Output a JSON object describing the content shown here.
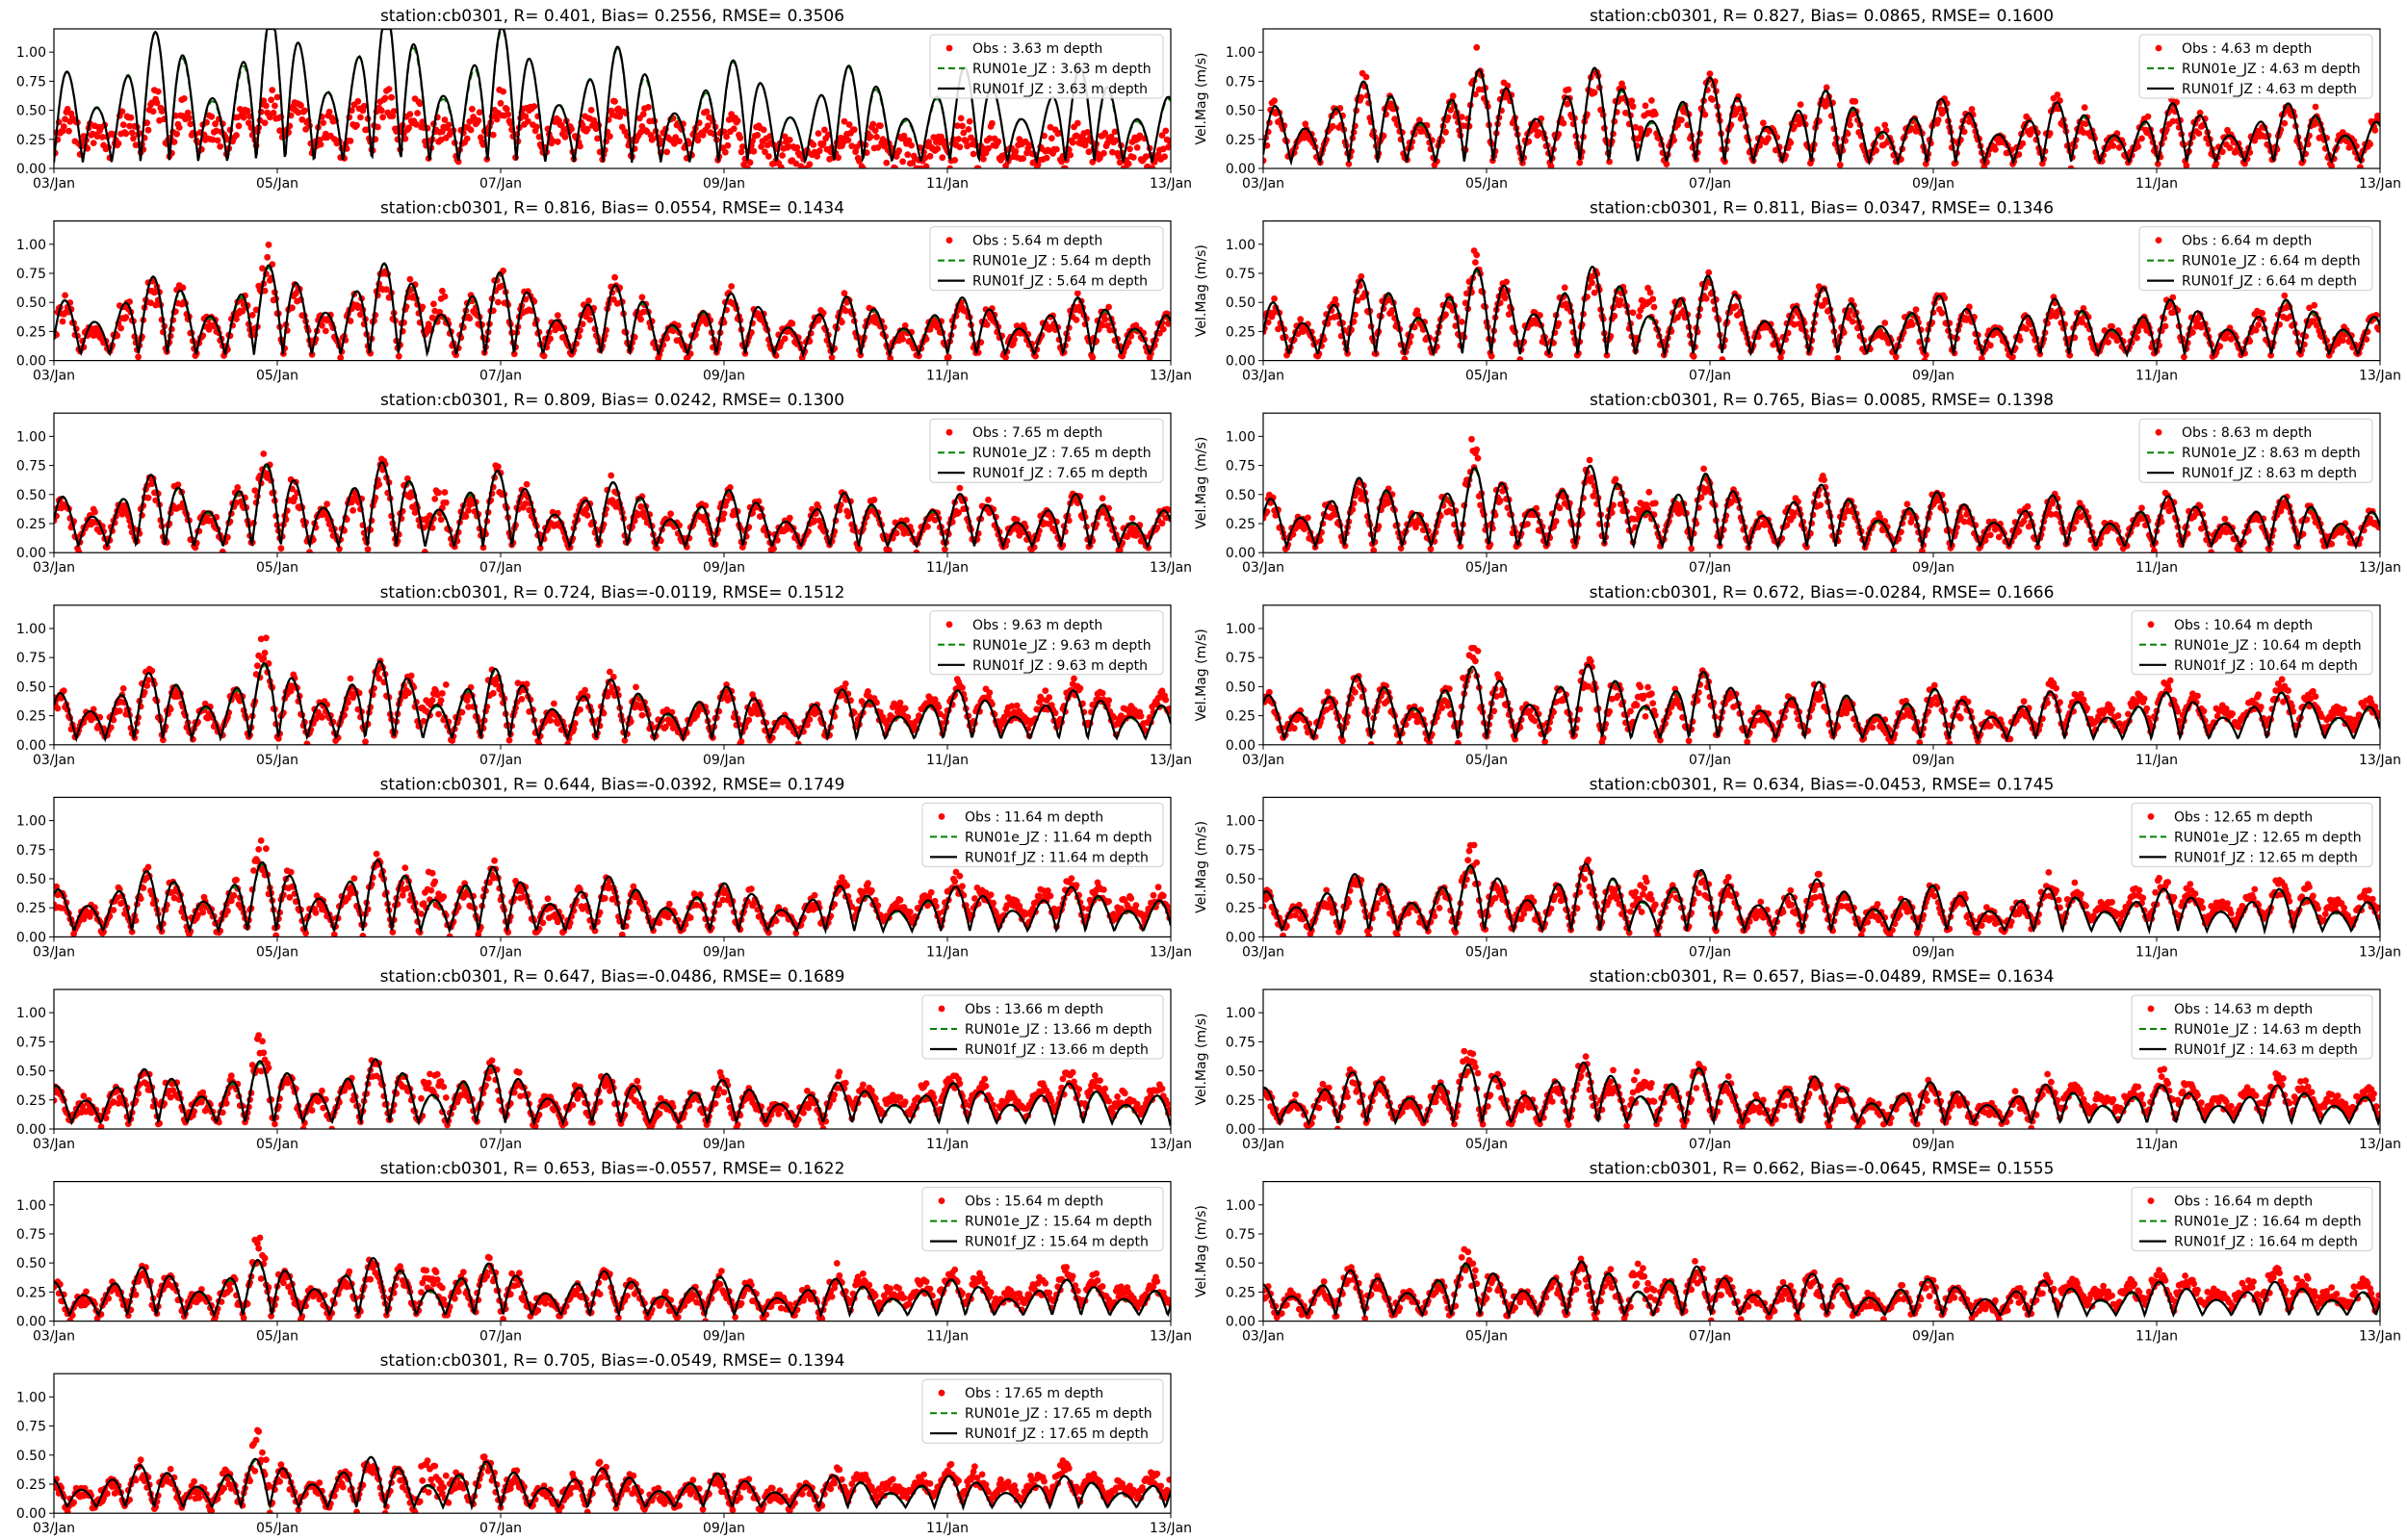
{
  "colors": {
    "obs": "#ff0000",
    "run01e": "#008000",
    "run01f": "#000000"
  },
  "chart_data": [
    {
      "type": "line",
      "title": "station:cb0301, R= 0.401, Bias= 0.2556, RMSE= 0.3506",
      "xlabel": "",
      "ylabel": "",
      "depth": "3.63",
      "x_ticks": [
        "03/Jan",
        "05/Jan",
        "07/Jan",
        "09/Jan",
        "11/Jan",
        "13/Jan"
      ],
      "y_ticks": [
        "0.00",
        "0.25",
        "0.50",
        "0.75",
        "1.00"
      ],
      "ylim": [
        0,
        1.2
      ],
      "legend_position": "upper right",
      "series": [
        {
          "name": "Obs : 3.63 m depth",
          "style": "points"
        },
        {
          "name": "RUN01e_JZ : 3.63 m depth",
          "style": "dashed"
        },
        {
          "name": "RUN01f_JZ : 3.63 m depth",
          "style": "solid"
        }
      ]
    },
    {
      "type": "line",
      "title": "station:cb0301, R= 0.827, Bias= 0.0865, RMSE= 0.1600",
      "xlabel": "",
      "ylabel": "Vel.Mag (m/s)",
      "depth": "4.63",
      "x_ticks": [
        "03/Jan",
        "05/Jan",
        "07/Jan",
        "09/Jan",
        "11/Jan",
        "13/Jan"
      ],
      "y_ticks": [
        "0.00",
        "0.25",
        "0.50",
        "0.75",
        "1.00"
      ],
      "ylim": [
        0,
        1.2
      ],
      "legend_position": "upper right",
      "series": [
        {
          "name": "Obs : 4.63 m depth",
          "style": "points"
        },
        {
          "name": "RUN01e_JZ : 4.63 m depth",
          "style": "dashed"
        },
        {
          "name": "RUN01f_JZ : 4.63 m depth",
          "style": "solid"
        }
      ]
    },
    {
      "type": "line",
      "title": "station:cb0301, R= 0.816, Bias= 0.0554, RMSE= 0.1434",
      "xlabel": "",
      "ylabel": "",
      "depth": "5.64",
      "x_ticks": [
        "03/Jan",
        "05/Jan",
        "07/Jan",
        "09/Jan",
        "11/Jan",
        "13/Jan"
      ],
      "y_ticks": [
        "0.00",
        "0.25",
        "0.50",
        "0.75",
        "1.00"
      ],
      "ylim": [
        0,
        1.2
      ],
      "legend_position": "upper right",
      "series": [
        {
          "name": "Obs : 5.64 m depth",
          "style": "points"
        },
        {
          "name": "RUN01e_JZ : 5.64 m depth",
          "style": "dashed"
        },
        {
          "name": "RUN01f_JZ : 5.64 m depth",
          "style": "solid"
        }
      ]
    },
    {
      "type": "line",
      "title": "station:cb0301, R= 0.811, Bias= 0.0347, RMSE= 0.1346",
      "xlabel": "",
      "ylabel": "Vel.Mag (m/s)",
      "depth": "6.64",
      "x_ticks": [
        "03/Jan",
        "05/Jan",
        "07/Jan",
        "09/Jan",
        "11/Jan",
        "13/Jan"
      ],
      "y_ticks": [
        "0.00",
        "0.25",
        "0.50",
        "0.75",
        "1.00"
      ],
      "ylim": [
        0,
        1.2
      ],
      "legend_position": "upper right",
      "series": [
        {
          "name": "Obs : 6.64 m depth",
          "style": "points"
        },
        {
          "name": "RUN01e_JZ : 6.64 m depth",
          "style": "dashed"
        },
        {
          "name": "RUN01f_JZ : 6.64 m depth",
          "style": "solid"
        }
      ]
    },
    {
      "type": "line",
      "title": "station:cb0301, R= 0.809, Bias= 0.0242, RMSE= 0.1300",
      "xlabel": "",
      "ylabel": "",
      "depth": "7.65",
      "x_ticks": [
        "03/Jan",
        "05/Jan",
        "07/Jan",
        "09/Jan",
        "11/Jan",
        "13/Jan"
      ],
      "y_ticks": [
        "0.00",
        "0.25",
        "0.50",
        "0.75",
        "1.00"
      ],
      "ylim": [
        0,
        1.2
      ],
      "legend_position": "upper right",
      "series": [
        {
          "name": "Obs : 7.65 m depth",
          "style": "points"
        },
        {
          "name": "RUN01e_JZ : 7.65 m depth",
          "style": "dashed"
        },
        {
          "name": "RUN01f_JZ : 7.65 m depth",
          "style": "solid"
        }
      ]
    },
    {
      "type": "line",
      "title": "station:cb0301, R= 0.765, Bias= 0.0085, RMSE= 0.1398",
      "xlabel": "",
      "ylabel": "Vel.Mag (m/s)",
      "depth": "8.63",
      "x_ticks": [
        "03/Jan",
        "05/Jan",
        "07/Jan",
        "09/Jan",
        "11/Jan",
        "13/Jan"
      ],
      "y_ticks": [
        "0.00",
        "0.25",
        "0.50",
        "0.75",
        "1.00"
      ],
      "ylim": [
        0,
        1.2
      ],
      "legend_position": "upper right",
      "series": [
        {
          "name": "Obs : 8.63 m depth",
          "style": "points"
        },
        {
          "name": "RUN01e_JZ : 8.63 m depth",
          "style": "dashed"
        },
        {
          "name": "RUN01f_JZ : 8.63 m depth",
          "style": "solid"
        }
      ]
    },
    {
      "type": "line",
      "title": "station:cb0301, R= 0.724, Bias=-0.0119, RMSE= 0.1512",
      "xlabel": "",
      "ylabel": "",
      "depth": "9.63",
      "x_ticks": [
        "03/Jan",
        "05/Jan",
        "07/Jan",
        "09/Jan",
        "11/Jan",
        "13/Jan"
      ],
      "y_ticks": [
        "0.00",
        "0.25",
        "0.50",
        "0.75",
        "1.00"
      ],
      "ylim": [
        0,
        1.2
      ],
      "legend_position": "upper right",
      "series": [
        {
          "name": "Obs : 9.63 m depth",
          "style": "points"
        },
        {
          "name": "RUN01e_JZ : 9.63 m depth",
          "style": "dashed"
        },
        {
          "name": "RUN01f_JZ : 9.63 m depth",
          "style": "solid"
        }
      ]
    },
    {
      "type": "line",
      "title": "station:cb0301, R= 0.672, Bias=-0.0284, RMSE= 0.1666",
      "xlabel": "",
      "ylabel": "Vel.Mag (m/s)",
      "depth": "10.64",
      "x_ticks": [
        "03/Jan",
        "05/Jan",
        "07/Jan",
        "09/Jan",
        "11/Jan",
        "13/Jan"
      ],
      "y_ticks": [
        "0.00",
        "0.25",
        "0.50",
        "0.75",
        "1.00"
      ],
      "ylim": [
        0,
        1.2
      ],
      "legend_position": "upper right",
      "series": [
        {
          "name": "Obs : 10.64 m depth",
          "style": "points"
        },
        {
          "name": "RUN01e_JZ : 10.64 m depth",
          "style": "dashed"
        },
        {
          "name": "RUN01f_JZ : 10.64 m depth",
          "style": "solid"
        }
      ]
    },
    {
      "type": "line",
      "title": "station:cb0301, R= 0.644, Bias=-0.0392, RMSE= 0.1749",
      "xlabel": "",
      "ylabel": "",
      "depth": "11.64",
      "x_ticks": [
        "03/Jan",
        "05/Jan",
        "07/Jan",
        "09/Jan",
        "11/Jan",
        "13/Jan"
      ],
      "y_ticks": [
        "0.00",
        "0.25",
        "0.50",
        "0.75",
        "1.00"
      ],
      "ylim": [
        0,
        1.2
      ],
      "legend_position": "upper right",
      "series": [
        {
          "name": "Obs : 11.64 m depth",
          "style": "points"
        },
        {
          "name": "RUN01e_JZ : 11.64 m depth",
          "style": "dashed"
        },
        {
          "name": "RUN01f_JZ : 11.64 m depth",
          "style": "solid"
        }
      ]
    },
    {
      "type": "line",
      "title": "station:cb0301, R= 0.634, Bias=-0.0453, RMSE= 0.1745",
      "xlabel": "",
      "ylabel": "Vel.Mag (m/s)",
      "depth": "12.65",
      "x_ticks": [
        "03/Jan",
        "05/Jan",
        "07/Jan",
        "09/Jan",
        "11/Jan",
        "13/Jan"
      ],
      "y_ticks": [
        "0.00",
        "0.25",
        "0.50",
        "0.75",
        "1.00"
      ],
      "ylim": [
        0,
        1.2
      ],
      "legend_position": "upper right",
      "series": [
        {
          "name": "Obs : 12.65 m depth",
          "style": "points"
        },
        {
          "name": "RUN01e_JZ : 12.65 m depth",
          "style": "dashed"
        },
        {
          "name": "RUN01f_JZ : 12.65 m depth",
          "style": "solid"
        }
      ]
    },
    {
      "type": "line",
      "title": "station:cb0301, R= 0.647, Bias=-0.0486, RMSE= 0.1689",
      "xlabel": "",
      "ylabel": "",
      "depth": "13.66",
      "x_ticks": [
        "03/Jan",
        "05/Jan",
        "07/Jan",
        "09/Jan",
        "11/Jan",
        "13/Jan"
      ],
      "y_ticks": [
        "0.00",
        "0.25",
        "0.50",
        "0.75",
        "1.00"
      ],
      "ylim": [
        0,
        1.2
      ],
      "legend_position": "upper right",
      "series": [
        {
          "name": "Obs : 13.66 m depth",
          "style": "points"
        },
        {
          "name": "RUN01e_JZ : 13.66 m depth",
          "style": "dashed"
        },
        {
          "name": "RUN01f_JZ : 13.66 m depth",
          "style": "solid"
        }
      ]
    },
    {
      "type": "line",
      "title": "station:cb0301, R= 0.657, Bias=-0.0489, RMSE= 0.1634",
      "xlabel": "",
      "ylabel": "Vel.Mag (m/s)",
      "depth": "14.63",
      "x_ticks": [
        "03/Jan",
        "05/Jan",
        "07/Jan",
        "09/Jan",
        "11/Jan",
        "13/Jan"
      ],
      "y_ticks": [
        "0.00",
        "0.25",
        "0.50",
        "0.75",
        "1.00"
      ],
      "ylim": [
        0,
        1.2
      ],
      "legend_position": "upper right",
      "series": [
        {
          "name": "Obs : 14.63 m depth",
          "style": "points"
        },
        {
          "name": "RUN01e_JZ : 14.63 m depth",
          "style": "dashed"
        },
        {
          "name": "RUN01f_JZ : 14.63 m depth",
          "style": "solid"
        }
      ]
    },
    {
      "type": "line",
      "title": "station:cb0301, R= 0.653, Bias=-0.0557, RMSE= 0.1622",
      "xlabel": "",
      "ylabel": "",
      "depth": "15.64",
      "x_ticks": [
        "03/Jan",
        "05/Jan",
        "07/Jan",
        "09/Jan",
        "11/Jan",
        "13/Jan"
      ],
      "y_ticks": [
        "0.00",
        "0.25",
        "0.50",
        "0.75",
        "1.00"
      ],
      "ylim": [
        0,
        1.2
      ],
      "legend_position": "upper right",
      "series": [
        {
          "name": "Obs : 15.64 m depth",
          "style": "points"
        },
        {
          "name": "RUN01e_JZ : 15.64 m depth",
          "style": "dashed"
        },
        {
          "name": "RUN01f_JZ : 15.64 m depth",
          "style": "solid"
        }
      ]
    },
    {
      "type": "line",
      "title": "station:cb0301, R= 0.662, Bias=-0.0645, RMSE= 0.1555",
      "xlabel": "",
      "ylabel": "Vel.Mag (m/s)",
      "depth": "16.64",
      "x_ticks": [
        "03/Jan",
        "05/Jan",
        "07/Jan",
        "09/Jan",
        "11/Jan",
        "13/Jan"
      ],
      "y_ticks": [
        "0.00",
        "0.25",
        "0.50",
        "0.75",
        "1.00"
      ],
      "ylim": [
        0,
        1.2
      ],
      "legend_position": "upper right",
      "series": [
        {
          "name": "Obs : 16.64 m depth",
          "style": "points"
        },
        {
          "name": "RUN01e_JZ : 16.64 m depth",
          "style": "dashed"
        },
        {
          "name": "RUN01f_JZ : 16.64 m depth",
          "style": "solid"
        }
      ]
    },
    {
      "type": "line",
      "title": "station:cb0301, R= 0.705, Bias=-0.0549, RMSE= 0.1394",
      "xlabel": "",
      "ylabel": "",
      "depth": "17.65",
      "x_ticks": [
        "03/Jan",
        "05/Jan",
        "07/Jan",
        "09/Jan",
        "11/Jan",
        "13/Jan"
      ],
      "y_ticks": [
        "0.00",
        "0.25",
        "0.50",
        "0.75",
        "1.00"
      ],
      "ylim": [
        0,
        1.2
      ],
      "legend_position": "upper right",
      "series": [
        {
          "name": "Obs : 17.65 m depth",
          "style": "points"
        },
        {
          "name": "RUN01e_JZ : 17.65 m depth",
          "style": "dashed"
        },
        {
          "name": "RUN01f_JZ : 17.65 m depth",
          "style": "solid"
        }
      ]
    }
  ]
}
